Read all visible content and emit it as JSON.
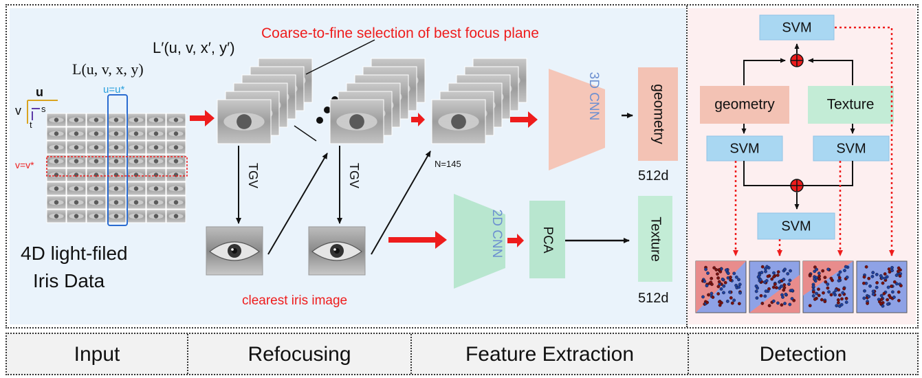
{
  "formulas": {
    "l4d": "L(u, v, x, y)",
    "lrefocus": "L′(u, v, x′, y′)",
    "u_star": "u=u*",
    "v_star": "v=v*",
    "axis_u": "u",
    "axis_v": "v",
    "axis_s": "s",
    "axis_t": "t"
  },
  "input": {
    "title_line1": "4D light-filed",
    "title_line2": "Iris Data"
  },
  "refocusing": {
    "headline": "Coarse-to-fine selection of best focus plane",
    "tgv_label": "TGV",
    "n_label": "N=145",
    "clearest_label": "clearest iris image"
  },
  "features": {
    "cnn3d": "3D CNN",
    "cnn2d": "2D CNN",
    "pca": "PCA",
    "geometry": "geometry",
    "texture": "Texture",
    "dim": "512d"
  },
  "detection": {
    "svm": "SVM",
    "geometry": "geometry",
    "texture": "Texture"
  },
  "stages": [
    "Input",
    "Refocusing",
    "Feature Extraction",
    "Detection"
  ],
  "colors": {
    "red": "#ee1c1c",
    "cnn3d": "#f5c6b8",
    "cnn2d": "#b8e6cf",
    "geometry": "#f3c2b4",
    "texture": "#c3ecd6",
    "svm": "#a9d7f2",
    "detection_bg": "#fdeff0",
    "left_bg": "#eaf3fb",
    "cnn_text": "#6c8fd0"
  }
}
